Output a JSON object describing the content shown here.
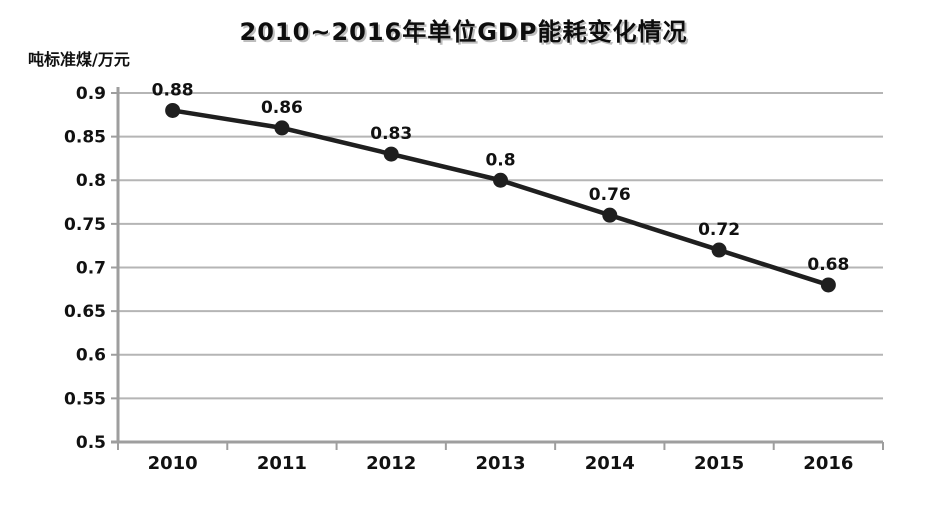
{
  "chart_data": {
    "type": "line",
    "title": "2010~2016年单位GDP能耗变化情况",
    "unit_label": "吨标准煤/万元",
    "xlabel": "",
    "ylabel": "吨标准煤/万元",
    "categories": [
      "2010",
      "2011",
      "2012",
      "2013",
      "2014",
      "2015",
      "2016"
    ],
    "series": [
      {
        "name": "单位GDP能耗",
        "values": [
          0.88,
          0.86,
          0.83,
          0.8,
          0.76,
          0.72,
          0.68
        ],
        "data_labels": [
          "0.88",
          "0.86",
          "0.83",
          "0.8",
          "0.76",
          "0.72",
          "0.68"
        ]
      }
    ],
    "ylim": [
      0.5,
      0.9
    ],
    "ytick_step": 0.05,
    "ytick_labels": [
      "0.9",
      "0.85",
      "0.8",
      "0.75",
      "0.7",
      "0.65",
      "0.6",
      "0.55",
      "0.5"
    ],
    "grid": true,
    "legend_position": "none",
    "colors": {
      "line": "#1f1f1f",
      "marker": "#1f1f1f",
      "grid": "#b5b5b5",
      "axis": "#9e9e9e",
      "text": "#111111",
      "background": "#ffffff"
    }
  }
}
